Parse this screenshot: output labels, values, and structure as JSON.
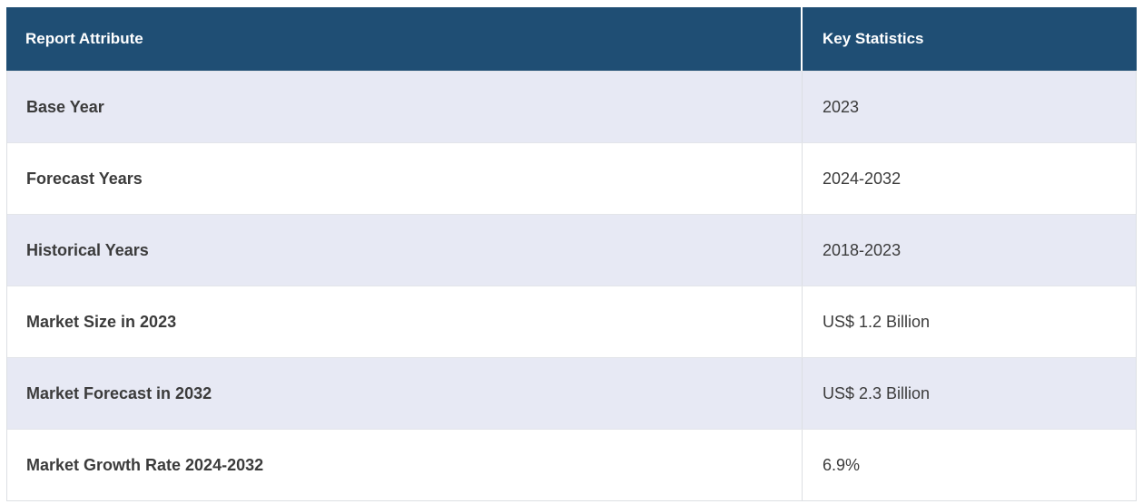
{
  "table": {
    "columns": {
      "attribute": "Report Attribute",
      "value": "Key Statistics"
    },
    "rows": [
      {
        "attribute": "Base Year",
        "value": "2023"
      },
      {
        "attribute": "Forecast Years",
        "value": "2024-2032"
      },
      {
        "attribute": "Historical Years",
        "value": "2018-2023"
      },
      {
        "attribute": "Market Size in 2023",
        "value": "US$ 1.2 Billion"
      },
      {
        "attribute": "Market Forecast in 2032",
        "value": "US$ 2.3 Billion"
      },
      {
        "attribute": "Market Growth Rate 2024-2032",
        "value": "6.9%"
      }
    ]
  },
  "chart_data": {
    "type": "table",
    "title": "",
    "columns": [
      "Report Attribute",
      "Key Statistics"
    ],
    "rows": [
      [
        "Base Year",
        "2023"
      ],
      [
        "Forecast Years",
        "2024-2032"
      ],
      [
        "Historical Years",
        "2018-2023"
      ],
      [
        "Market Size in 2023",
        "US$ 1.2 Billion"
      ],
      [
        "Market Forecast in 2032",
        "US$ 2.3 Billion"
      ],
      [
        "Market Growth Rate 2024-2032",
        "6.9%"
      ]
    ],
    "layout": {
      "header_position": "top",
      "zebra_striping": true,
      "column_split_ratio": [
        0.703,
        0.297
      ]
    }
  },
  "colors": {
    "header_bg": "#1f4e74",
    "header_text": "#ffffff",
    "row_bg": "#ffffff",
    "row_alt_bg": "#e7e9f4",
    "border": "#dcdfe3",
    "body_text": "#3b3b3b"
  }
}
